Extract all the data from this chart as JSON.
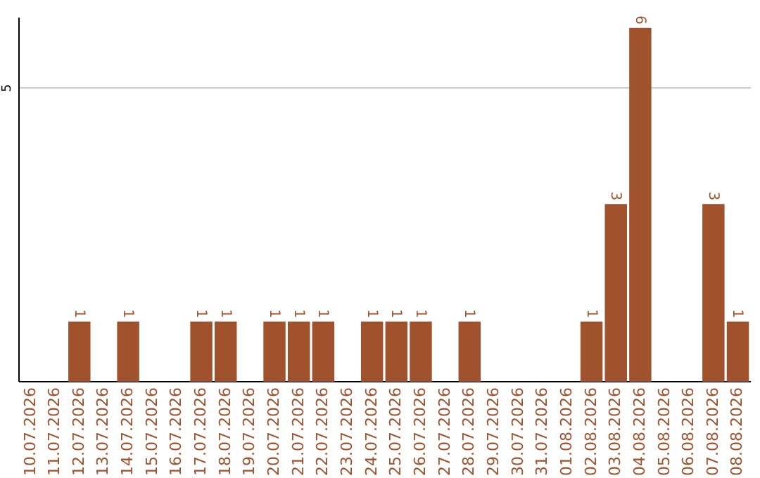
{
  "chart_data": {
    "type": "bar",
    "categories": [
      "10.07.2026",
      "11.07.2026",
      "12.07.2026",
      "13.07.2026",
      "14.07.2026",
      "15.07.2026",
      "16.07.2026",
      "17.07.2026",
      "18.07.2026",
      "19.07.2026",
      "20.07.2026",
      "21.07.2026",
      "22.07.2026",
      "23.07.2026",
      "24.07.2026",
      "25.07.2026",
      "26.07.2026",
      "27.07.2026",
      "28.07.2026",
      "29.07.2026",
      "30.07.2026",
      "31.07.2026",
      "01.08.2026",
      "02.08.2026",
      "03.08.2026",
      "04.08.2026",
      "05.08.2026",
      "06.08.2026",
      "07.08.2026",
      "08.08.2026"
    ],
    "values": [
      null,
      null,
      1,
      null,
      1,
      null,
      null,
      1,
      1,
      null,
      1,
      1,
      1,
      null,
      1,
      1,
      1,
      null,
      1,
      null,
      null,
      null,
      null,
      1,
      3,
      6,
      null,
      null,
      3,
      1
    ],
    "color": "#a0522d",
    "ylim": [
      0,
      6.2
    ],
    "yticks": [
      5
    ],
    "grid": "y",
    "data_labels": true
  }
}
